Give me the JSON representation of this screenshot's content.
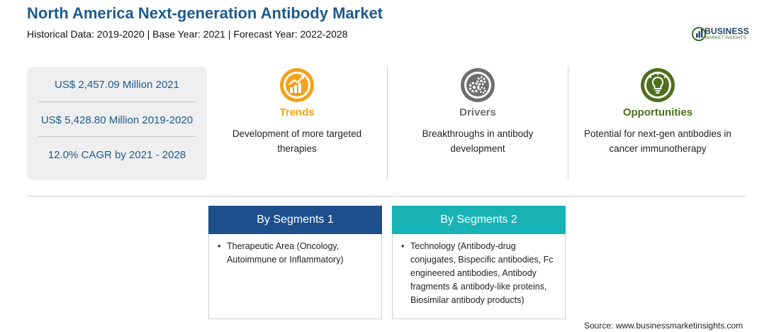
{
  "header": {
    "title": "North America Next-generation Antibody Market",
    "subtitle": "Historical Data: 2019-2020 | Base Year: 2021 | Forecast Year: 2022-2028"
  },
  "logo": {
    "name": "BUSINESS",
    "sub": "MARKET INSIGHTS"
  },
  "stats": [
    "US$ 2,457.09 Million 2021",
    "US$ 5,428.80 Million 2019-2020",
    "12.0% CAGR by 2021 - 2028"
  ],
  "columns": [
    {
      "label": "Trends",
      "icon": "growth-chart-icon",
      "color": "#f2a31b",
      "text": "Development of more targeted therapies"
    },
    {
      "label": "Drivers",
      "icon": "gears-icon",
      "color": "#6e6e6e",
      "text": "Breakthroughs in antibody development"
    },
    {
      "label": "Opportunities",
      "icon": "lightbulb-icon",
      "color": "#4e6f1d",
      "text": "Potential for next-gen antibodies in cancer immunotherapy"
    }
  ],
  "segments": [
    {
      "title": "By Segments 1",
      "color": "#1e4f8c",
      "items": [
        "Therapeutic Area (Oncology, Autoimmune or Inflammatory)"
      ]
    },
    {
      "title": "By Segments 2",
      "color": "#1ab3b5",
      "items": [
        "Technology (Antibody-drug conjugates, Bispecific antibodies, Fc engineered antibodies, Antibody fragments & antibody-like proteins, Biosimilar antibody products)"
      ]
    }
  ],
  "source": "Source: www.businessmarketinsights.com"
}
